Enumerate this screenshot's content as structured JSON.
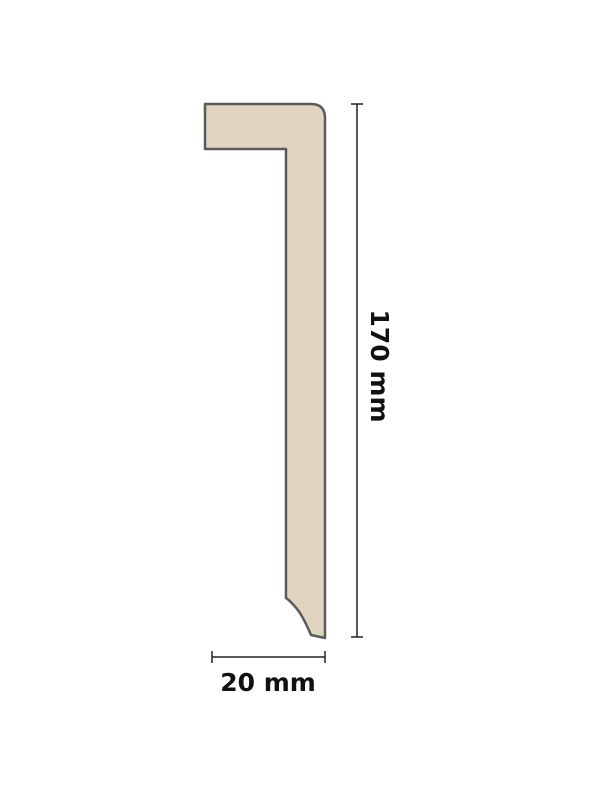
{
  "profile": {
    "fill_color": "#e0d4c1",
    "stroke_color": "#5a5a5a"
  },
  "dimensions": {
    "height_label": "170 mm",
    "width_label": "20 mm",
    "line_color": "#222222"
  }
}
